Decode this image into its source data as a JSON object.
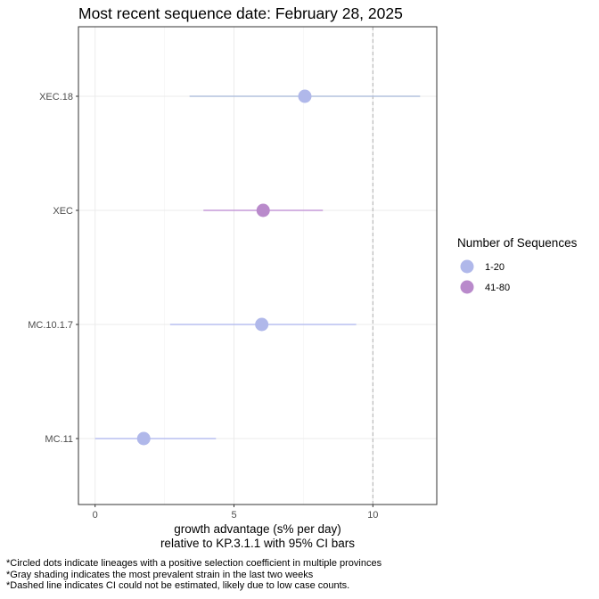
{
  "chart_data": {
    "type": "scatter",
    "title": "Most recent sequence date: February 28, 2025",
    "xlabel_line1": "growth advantage (s% per day)",
    "xlabel_line2": "relative to  KP.3.1.1  with 95% CI bars",
    "xlim": [
      -0.6,
      12.3
    ],
    "x_ticks": [
      0,
      5,
      10
    ],
    "reference_line_x": 10,
    "grid": true,
    "legend_placement": "right",
    "legend": {
      "title": "Number of Sequences",
      "entries": [
        {
          "label": "1-20",
          "color": "#b0b8ea"
        },
        {
          "label": "41-80",
          "color": "#b98acb"
        }
      ]
    },
    "points": [
      {
        "lineage": "XEC.18",
        "x": 7.55,
        "ci_low": 3.4,
        "ci_high": 11.7,
        "group": "1-20",
        "color": "#b0b8ea",
        "ci_color": "#b4c2de"
      },
      {
        "lineage": "XEC",
        "x": 6.05,
        "ci_low": 3.9,
        "ci_high": 8.2,
        "group": "41-80",
        "color": "#b98acb",
        "ci_color": "#c59ad8"
      },
      {
        "lineage": "MC.10.1.7",
        "x": 6.0,
        "ci_low": 2.7,
        "ci_high": 9.4,
        "group": "1-20",
        "color": "#b0b8ea",
        "ci_color": "#b8bff0"
      },
      {
        "lineage": "MC.11",
        "x": 1.75,
        "ci_low": 0.0,
        "ci_high": 4.35,
        "group": "1-20",
        "color": "#b0b8ea",
        "ci_color": "#b8bff0"
      }
    ]
  },
  "footnotes": [
    "*Circled dots indicate lineages with a positive selection coefficient in multiple provinces",
    "*Gray shading indicates the most prevalent strain in the last two weeks",
    "*Dashed line indicates CI could not be estimated, likely due to low case counts."
  ]
}
